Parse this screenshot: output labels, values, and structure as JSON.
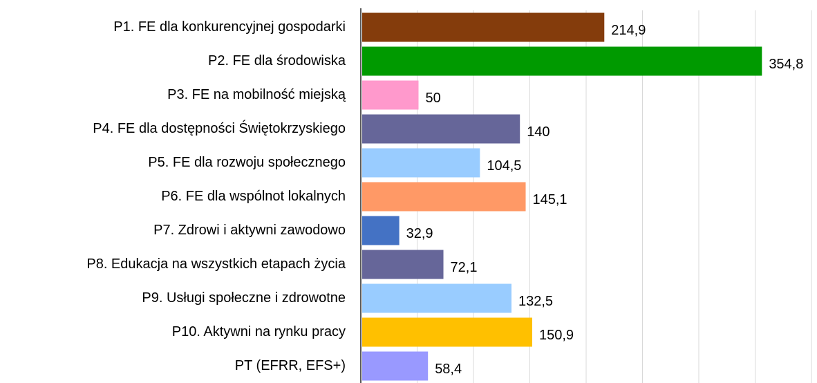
{
  "chart_data": {
    "type": "bar",
    "orientation": "horizontal",
    "categories": [
      "P1. FE dla konkurencyjnej gospodarki",
      "P2. FE dla środowiska",
      "P3. FE na mobilność miejską",
      "P4. FE dla dostępności Świętokrzyskiego",
      "P5. FE dla rozwoju społecznego",
      "P6. FE dla wspólnot lokalnych",
      "P7. Zdrowi i aktywni zawodowo",
      "P8. Edukacja na wszystkich etapach życia",
      "P9. Usługi społeczne i zdrowotne",
      "P10. Aktywni na rynku pracy",
      "PT (EFRR, EFS+)"
    ],
    "values": [
      214.9,
      354.8,
      50,
      140,
      104.5,
      145.1,
      32.9,
      72.1,
      132.5,
      150.9,
      58.4
    ],
    "value_labels": [
      "214,9",
      "354,8",
      "50",
      "140",
      "104,5",
      "145,1",
      "32,9",
      "72,1",
      "132,5",
      "150,9",
      "58,4"
    ],
    "colors": [
      "#843c0c",
      "#009a00",
      "#ff99cc",
      "#666699",
      "#99ccff",
      "#ff9966",
      "#4472c4",
      "#666699",
      "#99ccff",
      "#ffc000",
      "#9999ff"
    ],
    "xlim": [
      0,
      400
    ],
    "xticks": [
      0,
      50,
      100,
      150,
      200,
      250,
      300,
      350,
      400
    ],
    "grid": true
  }
}
